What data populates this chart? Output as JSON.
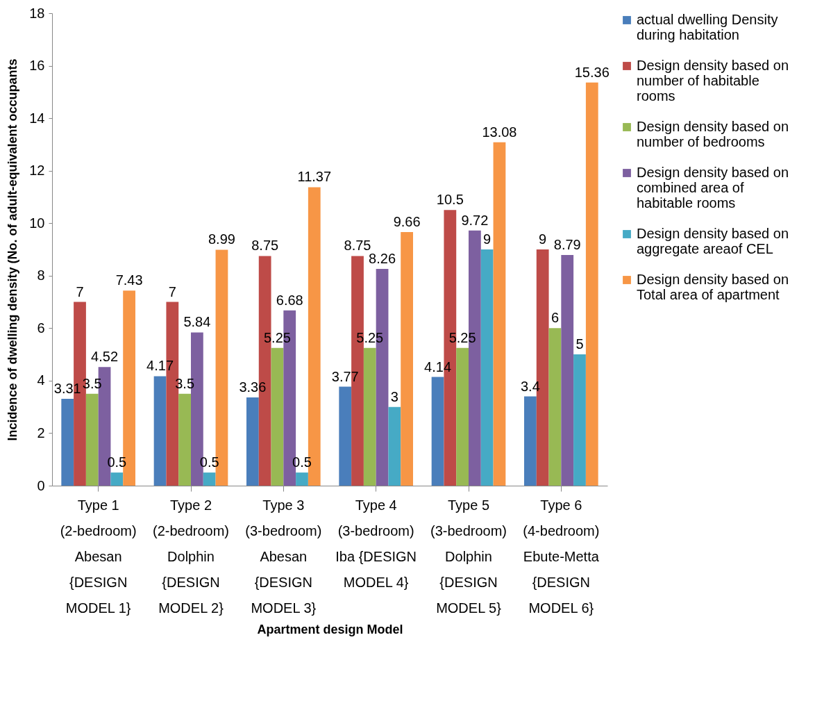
{
  "chart_data": {
    "type": "bar",
    "xlabel": "Apartment design Model",
    "ylabel": "Incidence of dwelling density (No. of adult-equivalent occupants",
    "categories": [
      "Type 1 (2-bedroom) Abesan {DESIGN MODEL 1}",
      "Type 2 (2-bedroom) Dolphin {DESIGN MODEL 2}",
      "Type 3 (3-bedroom) Abesan {DESIGN MODEL 3}",
      "Type 4 (3-bedroom) Iba {DESIGN MODEL 4}",
      "Type 5 (3-bedroom) Dolphin {DESIGN MODEL 5}",
      "Type 6 (4-bedroom) Ebute-Metta {DESIGN MODEL 6}"
    ],
    "series": [
      {
        "name": "actual dwelling Density during habitation",
        "color": "#4a7ebb",
        "values": [
          3.31,
          4.17,
          3.36,
          3.77,
          4.14,
          3.4
        ]
      },
      {
        "name": "Design density based on number of habitable rooms",
        "color": "#be4b48",
        "values": [
          7,
          7,
          8.75,
          8.75,
          10.5,
          9
        ]
      },
      {
        "name": "Design density based on number of bedrooms",
        "color": "#98b954",
        "values": [
          3.5,
          3.5,
          5.25,
          5.25,
          5.25,
          6
        ]
      },
      {
        "name": "Design density based on combined area of habitable rooms",
        "color": "#7d60a0",
        "values": [
          4.52,
          5.84,
          6.68,
          8.26,
          9.72,
          8.79
        ]
      },
      {
        "name": "Design density based on aggregate areaof CEL",
        "color": "#46aac5",
        "values": [
          0.5,
          0.5,
          0.5,
          3,
          9,
          5
        ]
      },
      {
        "name": "Design density based on Total area of apartment",
        "color": "#f79646",
        "values": [
          7.43,
          8.99,
          11.37,
          9.66,
          13.08,
          15.36
        ]
      }
    ],
    "ylim": [
      0,
      18
    ],
    "yticks": [
      0,
      2,
      4,
      6,
      8,
      10,
      12,
      14,
      16,
      18
    ],
    "grid": false,
    "legend": "right",
    "data_labels": true
  }
}
